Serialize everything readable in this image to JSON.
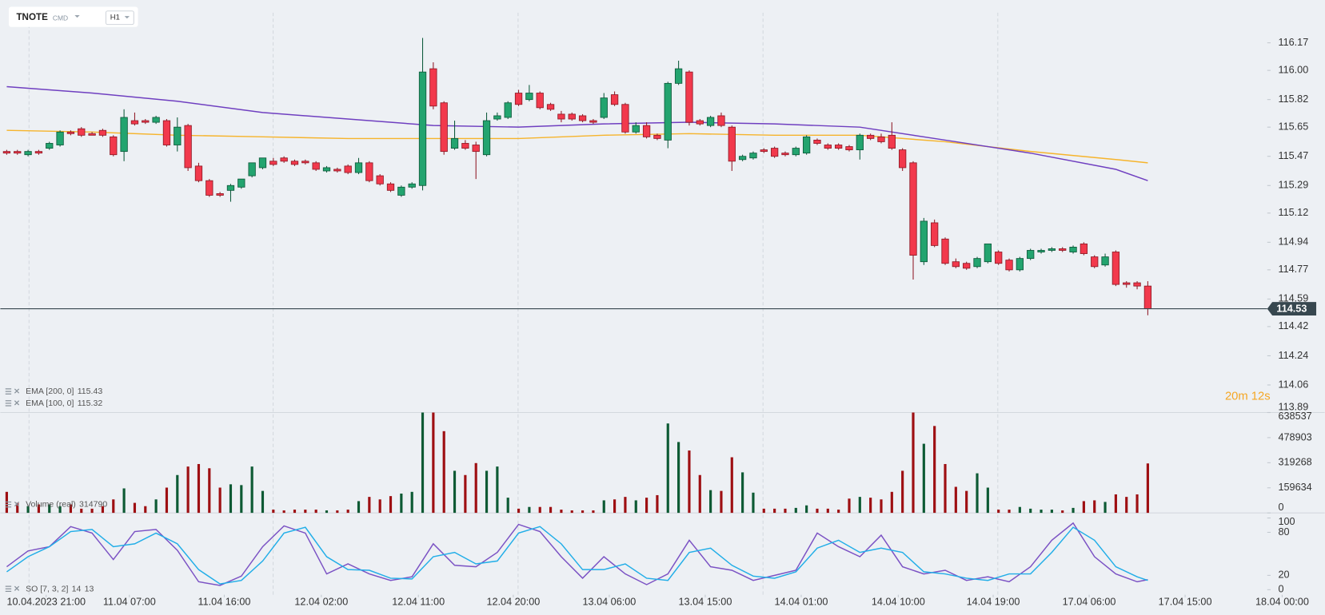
{
  "ui": {
    "symbol": "TNOTE",
    "market": "CMD",
    "timeframe": "H1",
    "countdown": "20m 12s"
  },
  "chart_data": [
    {
      "type": "candlestick",
      "up_color": "#23a46f",
      "down_color": "#f2394c",
      "up_edge": "#0e5a3b",
      "down_edge": "#8f1a26",
      "ylim": [
        113.89,
        116.33
      ],
      "yticks": [
        116.17,
        {
          "value": 116,
          "label": "116.00"
        },
        115.82,
        115.65,
        115.47,
        115.29,
        115.12,
        114.94,
        114.77,
        114.59,
        114.42,
        114.24,
        114.06,
        113.89
      ],
      "open": [
        115.5,
        115.5,
        115.48,
        115.5,
        115.52,
        115.54,
        115.62,
        115.64,
        115.61,
        115.63,
        115.59,
        115.5,
        115.69,
        115.69,
        115.68,
        115.69,
        115.54,
        115.66,
        115.41,
        115.32,
        115.24,
        115.26,
        115.28,
        115.35,
        115.4,
        115.44,
        115.46,
        115.44,
        115.44,
        115.43,
        115.38,
        115.39,
        115.41,
        115.37,
        115.43,
        115.35,
        115.3,
        115.23,
        115.28,
        115.29,
        116.01,
        115.8,
        115.52,
        115.55,
        115.54,
        115.48,
        115.7,
        115.71,
        115.86,
        115.82,
        115.86,
        115.79,
        115.73,
        115.73,
        115.72,
        115.69,
        115.71,
        115.85,
        115.79,
        115.62,
        115.66,
        115.6,
        115.57,
        115.92,
        115.99,
        115.69,
        115.66,
        115.72,
        115.65,
        115.45,
        115.46,
        115.51,
        115.52,
        115.49,
        115.48,
        115.49,
        115.57,
        115.54,
        115.54,
        115.53,
        115.51,
        115.6,
        115.59,
        115.6,
        115.51,
        115.43,
        114.82,
        115.06,
        114.96,
        114.82,
        114.81,
        114.79,
        114.82,
        114.88,
        114.83,
        114.77,
        114.84,
        114.88,
        114.89,
        114.9,
        114.88,
        114.93,
        114.85,
        114.8,
        114.88,
        114.69,
        114.69,
        114.67
      ],
      "high": [
        115.51,
        115.51,
        115.51,
        115.51,
        115.56,
        115.63,
        115.63,
        115.65,
        115.62,
        115.64,
        115.6,
        115.76,
        115.74,
        115.7,
        115.72,
        115.7,
        115.71,
        115.67,
        115.43,
        115.33,
        115.25,
        115.3,
        115.33,
        115.43,
        115.46,
        115.46,
        115.47,
        115.45,
        115.45,
        115.44,
        115.41,
        115.4,
        115.42,
        115.46,
        115.44,
        115.36,
        115.31,
        115.29,
        115.31,
        116.2,
        116.05,
        115.81,
        115.69,
        115.57,
        115.56,
        115.74,
        115.74,
        115.81,
        115.88,
        115.91,
        115.87,
        115.8,
        115.75,
        115.74,
        115.73,
        115.7,
        115.86,
        115.87,
        115.8,
        115.68,
        115.68,
        115.61,
        115.93,
        116.06,
        116.0,
        115.7,
        115.72,
        115.74,
        115.66,
        115.48,
        115.5,
        115.52,
        115.53,
        115.5,
        115.53,
        115.6,
        115.58,
        115.55,
        115.55,
        115.54,
        115.61,
        115.61,
        115.61,
        115.68,
        115.52,
        115.44,
        115.09,
        115.08,
        114.97,
        114.84,
        114.82,
        114.85,
        114.93,
        114.89,
        114.84,
        114.85,
        114.9,
        114.9,
        114.91,
        114.91,
        114.92,
        114.94,
        114.86,
        114.87,
        114.89,
        114.7,
        114.7,
        114.7
      ],
      "low": [
        115.48,
        115.48,
        115.47,
        115.48,
        115.51,
        115.53,
        115.6,
        115.59,
        115.6,
        115.59,
        115.47,
        115.44,
        115.66,
        115.67,
        115.67,
        115.53,
        115.5,
        115.38,
        115.31,
        115.22,
        115.22,
        115.19,
        115.27,
        115.34,
        115.39,
        115.41,
        115.43,
        115.41,
        115.42,
        115.38,
        115.37,
        115.37,
        115.36,
        115.36,
        115.31,
        115.29,
        115.25,
        115.22,
        115.27,
        115.26,
        115.76,
        115.48,
        115.51,
        115.51,
        115.33,
        115.47,
        115.69,
        115.7,
        115.78,
        115.81,
        115.76,
        115.75,
        115.68,
        115.69,
        115.68,
        115.67,
        115.7,
        115.78,
        115.61,
        115.61,
        115.58,
        115.57,
        115.52,
        115.91,
        115.66,
        115.66,
        115.65,
        115.65,
        115.38,
        115.44,
        115.45,
        115.49,
        115.46,
        115.47,
        115.47,
        115.48,
        115.54,
        115.51,
        115.51,
        115.5,
        115.45,
        115.57,
        115.55,
        115.51,
        115.38,
        114.71,
        114.8,
        114.91,
        114.8,
        114.78,
        114.77,
        114.78,
        114.81,
        114.8,
        114.76,
        114.76,
        114.83,
        114.87,
        114.88,
        114.88,
        114.87,
        114.86,
        114.78,
        114.79,
        114.67,
        114.66,
        114.65,
        114.49
      ],
      "close": [
        115.49,
        115.49,
        115.5,
        115.49,
        115.55,
        115.62,
        115.61,
        115.6,
        115.6,
        115.6,
        115.48,
        115.71,
        115.67,
        115.68,
        115.71,
        115.54,
        115.65,
        115.4,
        115.32,
        115.23,
        115.23,
        115.29,
        115.33,
        115.43,
        115.46,
        115.42,
        115.44,
        115.42,
        115.43,
        115.39,
        115.4,
        115.38,
        115.37,
        115.43,
        115.32,
        115.3,
        115.26,
        115.28,
        115.3,
        115.99,
        115.78,
        115.5,
        115.58,
        115.52,
        115.5,
        115.69,
        115.72,
        115.8,
        115.79,
        115.86,
        115.77,
        115.76,
        115.7,
        115.7,
        115.69,
        115.68,
        115.83,
        115.79,
        115.62,
        115.66,
        115.59,
        115.58,
        115.92,
        116.01,
        115.68,
        115.67,
        115.71,
        115.66,
        115.44,
        115.47,
        115.49,
        115.5,
        115.47,
        115.48,
        115.52,
        115.59,
        115.55,
        115.52,
        115.52,
        115.51,
        115.6,
        115.58,
        115.56,
        115.52,
        115.4,
        114.86,
        115.07,
        114.92,
        114.81,
        114.79,
        114.78,
        114.84,
        114.93,
        114.81,
        114.77,
        114.84,
        114.89,
        114.89,
        114.9,
        114.89,
        114.91,
        114.87,
        114.79,
        114.85,
        114.68,
        114.68,
        114.67,
        114.53
      ],
      "series": [
        {
          "name": "EMA [200, 0]",
          "color": "#f6b42c",
          "x": [
            0,
            8,
            16,
            24,
            32,
            40,
            48,
            56,
            64,
            72,
            80,
            88,
            96,
            104,
            107
          ],
          "values": [
            115.63,
            115.62,
            115.6,
            115.59,
            115.58,
            115.58,
            115.58,
            115.6,
            115.61,
            115.6,
            115.6,
            115.56,
            115.5,
            115.45,
            115.43
          ]
        },
        {
          "name": "EMA [100, 0]",
          "color": "#6f3fc0",
          "x": [
            0,
            8,
            16,
            24,
            32,
            40,
            48,
            56,
            64,
            72,
            80,
            88,
            96,
            104,
            107
          ],
          "values": [
            115.9,
            115.86,
            115.81,
            115.74,
            115.7,
            115.66,
            115.65,
            115.67,
            115.68,
            115.67,
            115.65,
            115.57,
            115.49,
            115.39,
            115.32
          ]
        }
      ]
    },
    {
      "type": "bar",
      "name": "Volume (real)",
      "up_color": "#0d5a34",
      "down_color": "#9e0f12",
      "ylim": [
        0,
        638537
      ],
      "yticks": [
        0,
        159634,
        319268,
        478903,
        638537
      ],
      "values": [
        134000,
        64000,
        43000,
        54000,
        54000,
        43000,
        54000,
        27000,
        27000,
        43000,
        86000,
        156000,
        64000,
        43000,
        86000,
        161000,
        241000,
        295000,
        311000,
        284000,
        161000,
        182000,
        177000,
        295000,
        140000,
        21000,
        16000,
        21000,
        21000,
        21000,
        16000,
        16000,
        21000,
        75000,
        102000,
        86000,
        107000,
        123000,
        134000,
        640000,
        640000,
        520000,
        268000,
        241000,
        317000,
        268000,
        295000,
        97000,
        27000,
        38000,
        38000,
        38000,
        21000,
        16000,
        16000,
        16000,
        80000,
        86000,
        102000,
        80000,
        97000,
        113000,
        569000,
        451000,
        397000,
        241000,
        145000,
        140000,
        354000,
        258000,
        129000,
        27000,
        27000,
        27000,
        32000,
        48000,
        27000,
        27000,
        21000,
        91000,
        102000,
        97000,
        86000,
        134000,
        268000,
        640000,
        440000,
        553000,
        311000,
        166000,
        140000,
        252000,
        161000,
        21000,
        21000,
        38000,
        27000,
        21000,
        21000,
        16000,
        32000,
        75000,
        80000,
        70000,
        118000,
        102000,
        118000,
        314790
      ]
    },
    {
      "type": "line",
      "name": "SO [7, 3, 2]",
      "ylim": [
        0,
        100
      ],
      "yticks": [
        0,
        20,
        80,
        100
      ],
      "xlim": [
        -0.6,
        118.2
      ],
      "xticks": [
        {
          "value": 3.7,
          "label": "10.04.2023 21:00"
        },
        {
          "value": 11.5,
          "label": "11.04 07:00"
        },
        {
          "value": 20.4,
          "label": "11.04 16:00"
        },
        {
          "value": 29.5,
          "label": "12.04 02:00"
        },
        {
          "value": 38.6,
          "label": "12.04 11:00"
        },
        {
          "value": 47.5,
          "label": "12.04 20:00"
        },
        {
          "value": 56.5,
          "label": "13.04 06:00"
        },
        {
          "value": 65.5,
          "label": "13.04 15:00"
        },
        {
          "value": 74.5,
          "label": "14.04 01:00"
        },
        {
          "value": 83.6,
          "label": "14.04 10:00"
        },
        {
          "value": 92.5,
          "label": "14.04 19:00"
        },
        {
          "value": 101.5,
          "label": "17.04 06:00"
        },
        {
          "value": 110.5,
          "label": "17.04 15:00"
        },
        {
          "value": 119.6,
          "label": "18.04 00:00"
        }
      ],
      "series": [
        {
          "color": "#7b52c4",
          "x": [
            0,
            2,
            4,
            6,
            8,
            10,
            12,
            14,
            16,
            18,
            20,
            22,
            24,
            26,
            28,
            30,
            32,
            34,
            36,
            38,
            40,
            42,
            44,
            46,
            48,
            50,
            52,
            54,
            56,
            58,
            60,
            62,
            64,
            66,
            68,
            70,
            72,
            74,
            76,
            78,
            80,
            82,
            84,
            86,
            88,
            90,
            92,
            94,
            96,
            98,
            100,
            102,
            104,
            106,
            107
          ],
          "values": [
            32,
            54,
            60,
            88,
            79,
            42,
            81,
            84,
            55,
            11,
            6,
            19,
            60,
            89,
            79,
            22,
            36,
            22,
            13,
            18,
            64,
            34,
            32,
            52,
            91,
            81,
            46,
            16,
            46,
            22,
            7,
            22,
            69,
            32,
            27,
            13,
            20,
            27,
            79,
            60,
            46,
            76,
            32,
            22,
            27,
            13,
            18,
            11,
            32,
            69,
            93,
            46,
            22,
            11,
            14
          ]
        },
        {
          "color": "#22aee8",
          "x": [
            0,
            2,
            4,
            6,
            8,
            10,
            12,
            14,
            16,
            18,
            20,
            22,
            24,
            26,
            28,
            30,
            32,
            34,
            36,
            38,
            40,
            42,
            44,
            46,
            48,
            50,
            52,
            54,
            56,
            58,
            60,
            62,
            64,
            66,
            68,
            70,
            72,
            74,
            76,
            78,
            80,
            82,
            84,
            86,
            88,
            90,
            92,
            94,
            96,
            98,
            100,
            102,
            104,
            106,
            107
          ],
          "values": [
            25,
            46,
            60,
            81,
            84,
            60,
            64,
            79,
            64,
            28,
            8,
            13,
            40,
            79,
            87,
            46,
            28,
            27,
            16,
            15,
            46,
            52,
            36,
            40,
            79,
            88,
            64,
            28,
            28,
            36,
            16,
            13,
            52,
            58,
            34,
            19,
            16,
            25,
            58,
            69,
            52,
            58,
            52,
            25,
            22,
            16,
            13,
            22,
            22,
            52,
            87,
            69,
            32,
            18,
            13
          ]
        }
      ]
    }
  ]
}
